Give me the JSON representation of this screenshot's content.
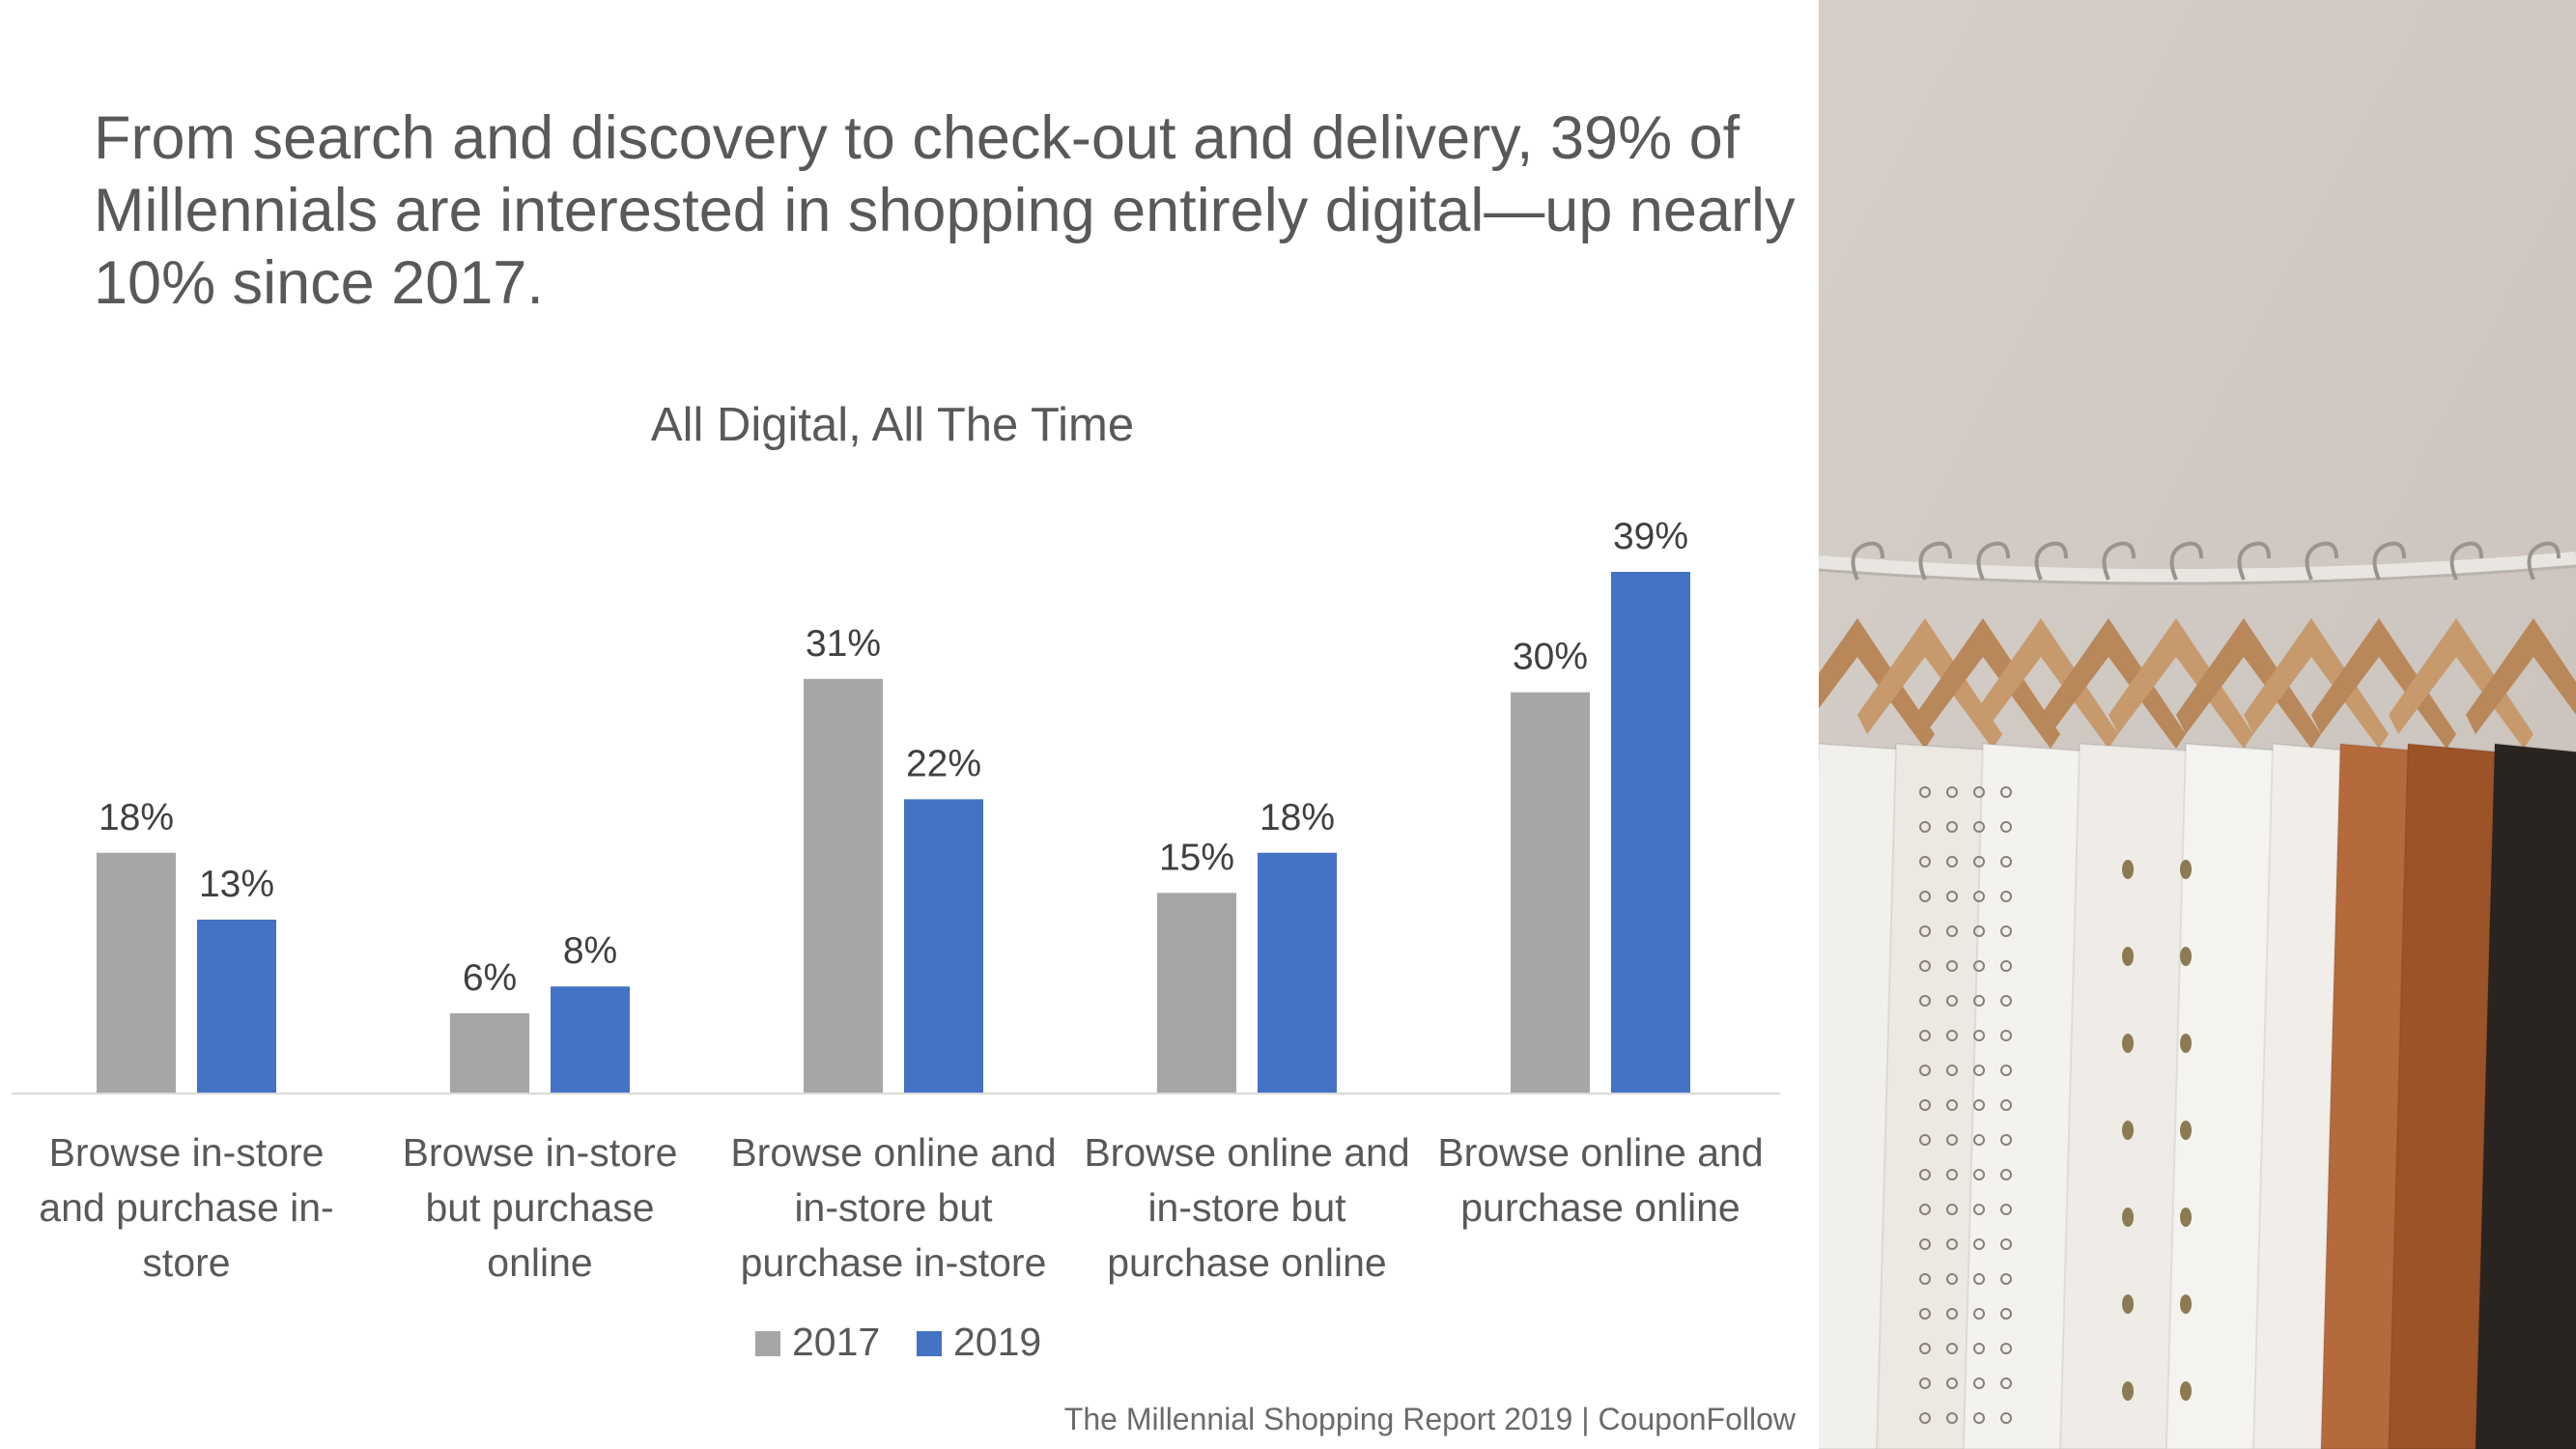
{
  "headline": "From search and discovery to check-out and delivery, 39% of Millennials are interested in shopping entirely digital—up nearly 10% since 2017.",
  "footer": "The Millennial Shopping Report 2019 | CouponFollow",
  "colors": {
    "s2017": "#a6a6a6",
    "s2019": "#4472c4",
    "text": "#595959",
    "axis": "#d9d9d9"
  },
  "chart_data": {
    "type": "bar",
    "title": "All Digital, All The Time",
    "categories": [
      [
        "Browse in-store",
        "and purchase in-",
        "store"
      ],
      [
        "Browse in-store",
        "but purchase",
        "online"
      ],
      [
        "Browse online and",
        "in-store but",
        "purchase in-store"
      ],
      [
        "Browse online and",
        "in-store but",
        "purchase online"
      ],
      [
        "Browse online and",
        "purchase online"
      ]
    ],
    "series": [
      {
        "name": "2017",
        "values": [
          18,
          6,
          31,
          15,
          30
        ],
        "labels": [
          "18%",
          "6%",
          "31%",
          "15%",
          "30%"
        ]
      },
      {
        "name": "2019",
        "values": [
          13,
          8,
          22,
          18,
          39
        ],
        "labels": [
          "13%",
          "8%",
          "22%",
          "18%",
          "39%"
        ]
      }
    ],
    "ylim": [
      0,
      39
    ],
    "grid": false,
    "legend": "bottom",
    "data_labels": true
  },
  "photo": {
    "subject": "clothes-rack-photo"
  }
}
